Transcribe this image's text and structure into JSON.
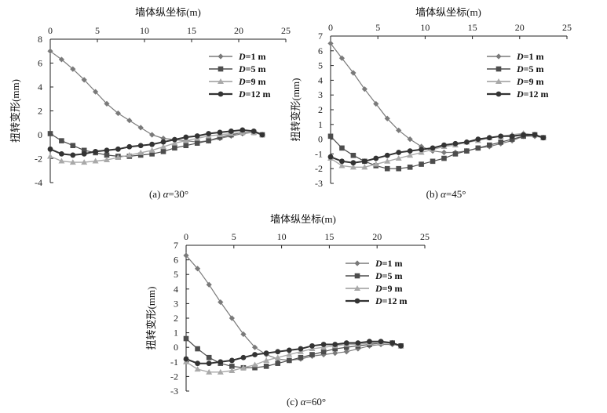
{
  "chart_data": [
    {
      "type": "line",
      "caption_prefix": "(a) ",
      "caption_greek": "α",
      "caption_value": "=30°",
      "x_title": "墙体纵坐标(m)",
      "y_title": "扭转变形(mm)",
      "xlim": [
        0,
        25
      ],
      "ylim": [
        -4,
        8
      ],
      "x_ticks": [
        "0",
        "5",
        "10",
        "15",
        "20",
        "25"
      ],
      "y_ticks": [
        "8",
        "6",
        "4",
        "2",
        "0",
        "-2",
        "-4"
      ],
      "legend_position": "top-right",
      "series": [
        {
          "name": "D=1 m",
          "marker": "diamond",
          "x": [
            0,
            1.2,
            2.4,
            3.6,
            4.8,
            6,
            7.2,
            8.4,
            9.6,
            10.8,
            12,
            13.2,
            14.4,
            15.6,
            16.8,
            18,
            19.2,
            20.4,
            21.6,
            22.5
          ],
          "y": [
            7.0,
            6.3,
            5.5,
            4.6,
            3.6,
            2.6,
            1.8,
            1.2,
            0.6,
            0.0,
            -0.3,
            -0.4,
            -0.5,
            -0.6,
            -0.5,
            -0.3,
            -0.1,
            0.1,
            0.2,
            0.0
          ]
        },
        {
          "name": "D=5 m",
          "marker": "square",
          "x": [
            0,
            1.2,
            2.4,
            3.6,
            4.8,
            6,
            7.2,
            8.4,
            9.6,
            10.8,
            12,
            13.2,
            14.4,
            15.6,
            16.8,
            18,
            19.2,
            20.4,
            21.6,
            22.5
          ],
          "y": [
            0.1,
            -0.5,
            -0.9,
            -1.3,
            -1.5,
            -1.7,
            -1.8,
            -1.8,
            -1.7,
            -1.6,
            -1.4,
            -1.1,
            -0.9,
            -0.7,
            -0.5,
            -0.2,
            0.0,
            0.2,
            0.2,
            0.0
          ]
        },
        {
          "name": "D=9 m",
          "marker": "triangle",
          "x": [
            0,
            1.2,
            2.4,
            3.6,
            4.8,
            6,
            7.2,
            8.4,
            9.6,
            10.8,
            12,
            13.2,
            14.4,
            15.6,
            16.8,
            18,
            19.2,
            20.4,
            21.6,
            22.5
          ],
          "y": [
            -1.8,
            -2.2,
            -2.3,
            -2.3,
            -2.2,
            -2.1,
            -1.9,
            -1.7,
            -1.5,
            -1.3,
            -1.0,
            -0.7,
            -0.5,
            -0.3,
            -0.1,
            0.0,
            0.1,
            0.2,
            0.2,
            0.0
          ]
        },
        {
          "name": "D=12 m",
          "marker": "circle",
          "x": [
            0,
            1.2,
            2.4,
            3.6,
            4.8,
            6,
            7.2,
            8.4,
            9.6,
            10.8,
            12,
            13.2,
            14.4,
            15.6,
            16.8,
            18,
            19.2,
            20.4,
            21.6,
            22.5
          ],
          "y": [
            -1.2,
            -1.6,
            -1.7,
            -1.6,
            -1.4,
            -1.3,
            -1.2,
            -1.0,
            -0.9,
            -0.8,
            -0.6,
            -0.4,
            -0.2,
            -0.1,
            0.1,
            0.2,
            0.3,
            0.4,
            0.3,
            0.0
          ]
        }
      ]
    },
    {
      "type": "line",
      "caption_prefix": "(b) ",
      "caption_greek": "α",
      "caption_value": "=45°",
      "x_title": "墙体纵坐标(m)",
      "y_title": "扭转变形(mm)",
      "xlim": [
        0,
        25
      ],
      "ylim": [
        -3,
        7
      ],
      "x_ticks": [
        "0",
        "5",
        "10",
        "15",
        "20",
        "25"
      ],
      "y_ticks": [
        "7",
        "6",
        "5",
        "4",
        "3",
        "2",
        "1",
        "0",
        "-1",
        "-2",
        "-3"
      ],
      "legend_position": "top-right",
      "series": [
        {
          "name": "D=1 m",
          "marker": "diamond",
          "x": [
            0,
            1.2,
            2.4,
            3.6,
            4.8,
            6,
            7.2,
            8.4,
            9.6,
            10.8,
            12,
            13.2,
            14.4,
            15.6,
            16.8,
            18,
            19.2,
            20.4,
            21.6,
            22.5
          ],
          "y": [
            6.5,
            5.5,
            4.5,
            3.4,
            2.4,
            1.4,
            0.6,
            0.0,
            -0.5,
            -0.8,
            -0.9,
            -0.9,
            -0.8,
            -0.6,
            -0.5,
            -0.3,
            -0.1,
            0.2,
            0.2,
            0.1
          ]
        },
        {
          "name": "D=5 m",
          "marker": "square",
          "x": [
            0,
            1.2,
            2.4,
            3.6,
            4.8,
            6,
            7.2,
            8.4,
            9.6,
            10.8,
            12,
            13.2,
            14.4,
            15.6,
            16.8,
            18,
            19.2,
            20.4,
            21.6,
            22.5
          ],
          "y": [
            0.2,
            -0.6,
            -1.1,
            -1.5,
            -1.8,
            -2.0,
            -2.0,
            -1.9,
            -1.7,
            -1.5,
            -1.3,
            -1.0,
            -0.8,
            -0.6,
            -0.4,
            -0.2,
            0.0,
            0.2,
            0.3,
            0.1
          ]
        },
        {
          "name": "D=9 m",
          "marker": "triangle",
          "x": [
            0,
            1.2,
            2.4,
            3.6,
            4.8,
            6,
            7.2,
            8.4,
            9.6,
            10.8,
            12,
            13.2,
            14.4,
            15.6,
            16.8,
            18,
            19.2,
            20.4,
            21.6,
            22.5
          ],
          "y": [
            -1.3,
            -1.8,
            -1.9,
            -1.9,
            -1.7,
            -1.5,
            -1.3,
            -1.1,
            -0.9,
            -0.7,
            -0.5,
            -0.4,
            -0.2,
            -0.1,
            0.1,
            0.2,
            0.3,
            0.4,
            0.3,
            0.1
          ]
        },
        {
          "name": "D=12 m",
          "marker": "circle",
          "x": [
            0,
            1.2,
            2.4,
            3.6,
            4.8,
            6,
            7.2,
            8.4,
            9.6,
            10.8,
            12,
            13.2,
            14.4,
            15.6,
            16.8,
            18,
            19.2,
            20.4,
            21.6,
            22.5
          ],
          "y": [
            -1.2,
            -1.5,
            -1.6,
            -1.5,
            -1.3,
            -1.1,
            -0.9,
            -0.8,
            -0.7,
            -0.6,
            -0.4,
            -0.3,
            -0.2,
            0.0,
            0.1,
            0.2,
            0.2,
            0.3,
            0.3,
            0.1
          ]
        }
      ]
    },
    {
      "type": "line",
      "caption_prefix": "(c) ",
      "caption_greek": "α",
      "caption_value": "=60°",
      "x_title": "墙体纵坐标(m)",
      "y_title": "扭转变形(mm)",
      "xlim": [
        0,
        25
      ],
      "ylim": [
        -3,
        7
      ],
      "x_ticks": [
        "0",
        "5",
        "10",
        "15",
        "20",
        "25"
      ],
      "y_ticks": [
        "7",
        "6",
        "5",
        "4",
        "3",
        "2",
        "1",
        "0",
        "-1",
        "-2",
        "-3"
      ],
      "legend_position": "top-right",
      "series": [
        {
          "name": "D=1 m",
          "marker": "diamond",
          "x": [
            0,
            1.2,
            2.4,
            3.6,
            4.8,
            6,
            7.2,
            8.4,
            9.6,
            10.8,
            12,
            13.2,
            14.4,
            15.6,
            16.8,
            18,
            19.2,
            20.4,
            21.6,
            22.5
          ],
          "y": [
            6.3,
            5.4,
            4.3,
            3.1,
            2.0,
            0.9,
            0.0,
            -0.5,
            -0.8,
            -0.9,
            -0.8,
            -0.6,
            -0.5,
            -0.4,
            -0.3,
            -0.1,
            0.1,
            0.2,
            0.2,
            0.1
          ]
        },
        {
          "name": "D=5 m",
          "marker": "square",
          "x": [
            0,
            1.2,
            2.4,
            3.6,
            4.8,
            6,
            7.2,
            8.4,
            9.6,
            10.8,
            12,
            13.2,
            14.4,
            15.6,
            16.8,
            18,
            19.2,
            20.4,
            21.6,
            22.5
          ],
          "y": [
            0.6,
            -0.1,
            -0.7,
            -1.1,
            -1.3,
            -1.4,
            -1.4,
            -1.3,
            -1.1,
            -0.9,
            -0.7,
            -0.5,
            -0.3,
            -0.1,
            0.0,
            0.1,
            0.2,
            0.3,
            0.3,
            0.1
          ]
        },
        {
          "name": "D=9 m",
          "marker": "triangle",
          "x": [
            0,
            1.2,
            2.4,
            3.6,
            4.8,
            6,
            7.2,
            8.4,
            9.6,
            10.8,
            12,
            13.2,
            14.4,
            15.6,
            16.8,
            18,
            19.2,
            20.4,
            21.6,
            22.5
          ],
          "y": [
            -1.0,
            -1.5,
            -1.7,
            -1.7,
            -1.6,
            -1.4,
            -1.2,
            -0.9,
            -0.7,
            -0.5,
            -0.3,
            -0.1,
            0.0,
            0.1,
            0.2,
            0.2,
            0.3,
            0.3,
            0.3,
            0.1
          ]
        },
        {
          "name": "D=12 m",
          "marker": "circle",
          "x": [
            0,
            1.2,
            2.4,
            3.6,
            4.8,
            6,
            7.2,
            8.4,
            9.6,
            10.8,
            12,
            13.2,
            14.4,
            15.6,
            16.8,
            18,
            19.2,
            20.4,
            21.6,
            22.5
          ],
          "y": [
            -0.8,
            -1.1,
            -1.1,
            -1.0,
            -0.9,
            -0.7,
            -0.5,
            -0.4,
            -0.3,
            -0.2,
            -0.1,
            0.1,
            0.2,
            0.2,
            0.3,
            0.3,
            0.4,
            0.4,
            0.3,
            0.1
          ]
        }
      ]
    }
  ]
}
